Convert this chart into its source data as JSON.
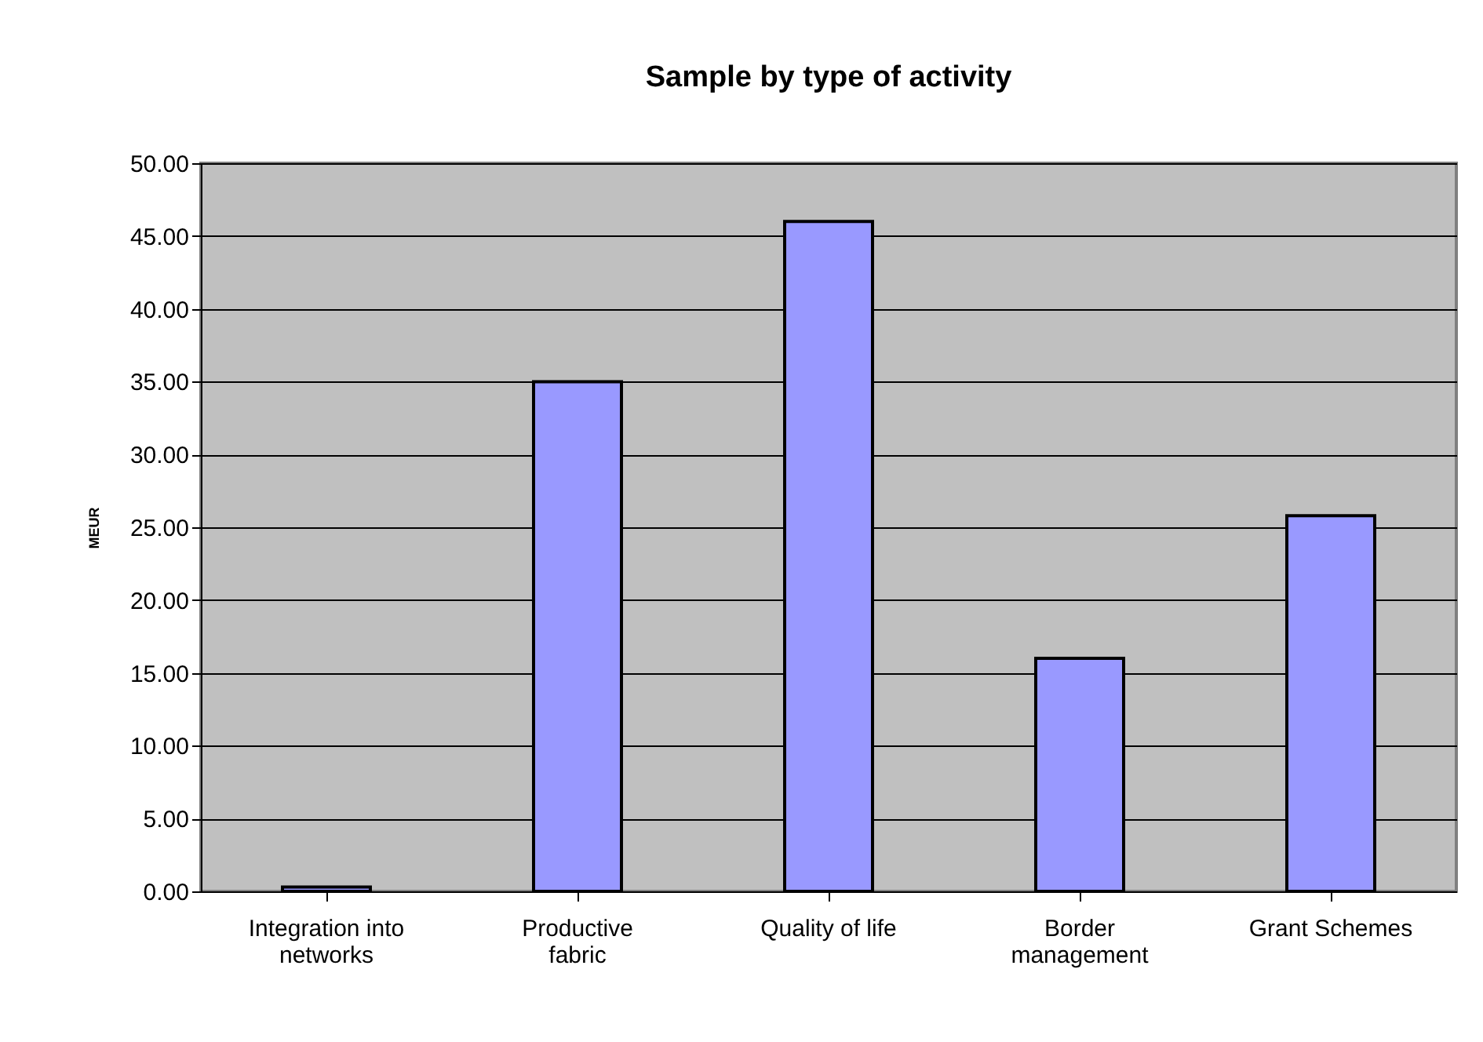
{
  "chart_data": {
    "type": "bar",
    "title": "Sample by type of activity",
    "ylabel": "MEUR",
    "categories": [
      "Integration into networks",
      "Productive fabric",
      "Quality of life",
      "Border management",
      "Grant Schemes"
    ],
    "values": [
      0.3,
      35.0,
      46.0,
      16.0,
      25.8
    ],
    "color": "#9999ff",
    "ylim": [
      0,
      50
    ],
    "yticks": [
      {
        "value": 0,
        "label": "0.00"
      },
      {
        "value": 5,
        "label": "5.00"
      },
      {
        "value": 10,
        "label": "10.00"
      },
      {
        "value": 15,
        "label": "15.00"
      },
      {
        "value": 20,
        "label": "20.00"
      },
      {
        "value": 25,
        "label": "25.00"
      },
      {
        "value": 30,
        "label": "30.00"
      },
      {
        "value": 35,
        "label": "35.00"
      },
      {
        "value": 40,
        "label": "40.00"
      },
      {
        "value": 45,
        "label": "45.00"
      },
      {
        "value": 50,
        "label": "50.00"
      }
    ],
    "grid": "y"
  }
}
